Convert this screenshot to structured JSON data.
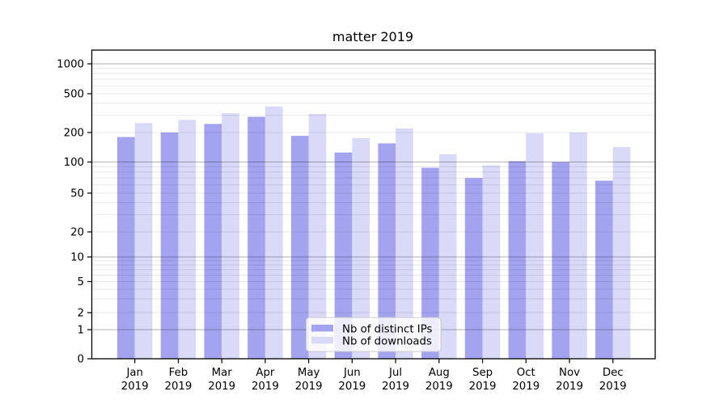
{
  "chart_data": {
    "type": "bar",
    "title": "matter 2019",
    "categories": [
      "Jan 2019",
      "Feb 2019",
      "Mar 2019",
      "Apr 2019",
      "May 2019",
      "Jun 2019",
      "Jul 2019",
      "Aug 2019",
      "Sep 2019",
      "Oct 2019",
      "Nov 2019",
      "Dec 2019"
    ],
    "series": [
      {
        "name": "Nb of distinct IPs",
        "color": "#a3a3f0",
        "values": [
          180,
          200,
          245,
          290,
          185,
          125,
          155,
          88,
          70,
          102,
          100,
          66
        ]
      },
      {
        "name": "Nb of downloads",
        "color": "#d9d9f8",
        "values": [
          250,
          270,
          315,
          370,
          310,
          175,
          220,
          120,
          93,
          197,
          200,
          142
        ]
      }
    ],
    "yscale": "symlog",
    "yticks": [
      0,
      1,
      2,
      5,
      10,
      20,
      50,
      100,
      200,
      500,
      1000
    ],
    "ylim": [
      0,
      1400
    ],
    "grid": true,
    "grid_on_top_of_bars": true,
    "legend_position": "lower center",
    "colors": {
      "minor_grid": "rgba(0,0,0,0.09)",
      "major_grid": "rgba(0,0,0,0.30)",
      "spine": "#000000",
      "legend_bg": "rgba(255,255,255,0.8)",
      "legend_border": "#cccccc"
    }
  }
}
